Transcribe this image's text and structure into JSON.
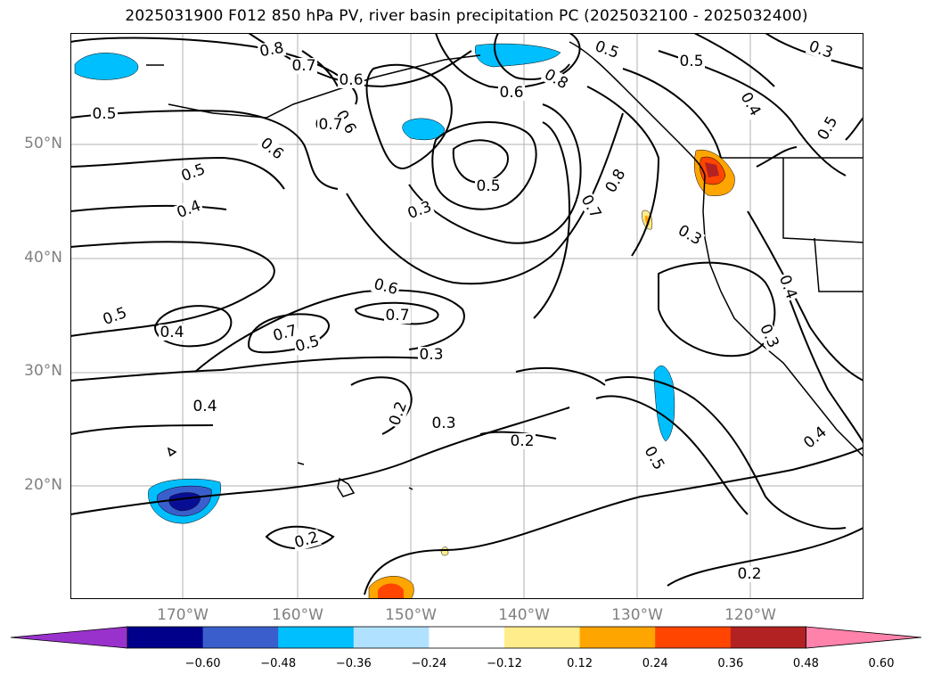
{
  "title": "2025031900 F012 850 hPa PV, river basin precipitation PC (2025032100 - 2025032400)",
  "lat_labels": [
    "50°N",
    "40°N",
    "30°N",
    "20°N"
  ],
  "lon_labels": [
    "170°W",
    "160°W",
    "150°W",
    "140°W",
    "130°W",
    "120°W"
  ],
  "contour_labels": [
    "0.8",
    "0.7",
    "0.5",
    "0.5",
    "0.3",
    "0.5",
    "0.6",
    "0.8",
    "0.6",
    "0.6",
    "0.5",
    "0.4",
    "0.6",
    "0.7",
    "0.7",
    "0.8",
    "0.7",
    "0.5",
    "0.3",
    "0.4",
    "0.5",
    "0.3",
    "0.4",
    "0.3",
    "0.6",
    "0.7",
    "0.7",
    "0.5",
    "0.3",
    "0.5",
    "0.4",
    "0.4",
    "0.2",
    "0.3",
    "0.2",
    "0.5",
    "0.4",
    "0.2",
    "0.2"
  ],
  "colorbar": {
    "ticks": [
      "−0.60",
      "−0.48",
      "−0.36",
      "−0.24",
      "−0.12",
      "0.12",
      "0.24",
      "0.36",
      "0.48",
      "0.60"
    ],
    "colors": [
      "#9932CC",
      "#00008B",
      "#3A5FCD",
      "#00BFFF",
      "#B0E2FF",
      "#FFFFFF",
      "#FFEC8B",
      "#FFA500",
      "#FF4500",
      "#B22222",
      "#FF82AB"
    ]
  },
  "colors": {
    "contour": "#000000",
    "grid": "#b0b0b0",
    "axis_labels": "#808080"
  }
}
